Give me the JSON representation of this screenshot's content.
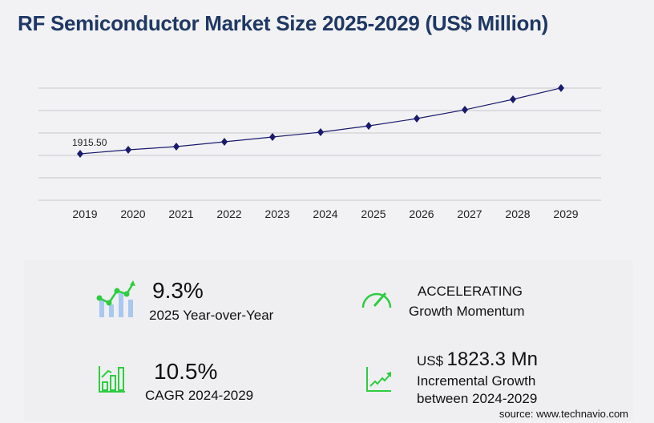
{
  "title": "RF Semiconductor Market Size 2025-2029 (US$ Million)",
  "chart_data": {
    "type": "line",
    "title": "RF Semiconductor Market Size 2025-2029 (US$ Million)",
    "categories": [
      "2019",
      "2020",
      "2021",
      "2022",
      "2023",
      "2024",
      "2025",
      "2026",
      "2027",
      "2028",
      "2029"
    ],
    "values": [
      1915.5,
      2081,
      2213,
      2411,
      2609,
      2807,
      3068,
      3369,
      3732,
      4162,
      4630
    ],
    "data_labels": {
      "0": "1915.50"
    },
    "xlabel": "",
    "ylabel": "",
    "ylim": [
      0,
      4625
    ],
    "grid": true,
    "line_color": "#1a1a6e"
  },
  "stats": {
    "yoy_value": "9.3%",
    "yoy_label": "2025 Year-over-Year",
    "momentum_value": "ACCELERATING",
    "momentum_label": "Growth Momentum",
    "cagr_value": "10.5%",
    "cagr_label": "CAGR 2024-2029",
    "incr_prefix": "US$",
    "incr_value": "1823.3 Mn",
    "incr_label_1": "Incremental Growth",
    "incr_label_2": "between 2024-2029"
  },
  "source": "source: www.technavio.com",
  "accent_color": "#2ecc40"
}
